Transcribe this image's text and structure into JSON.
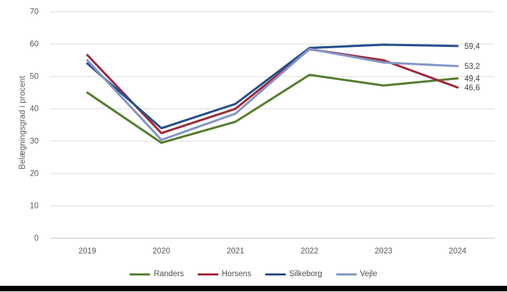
{
  "chart_data": {
    "type": "line",
    "title": "",
    "xlabel": "",
    "ylabel": "Belægningsgrad i procent",
    "x": [
      "2019",
      "2020",
      "2021",
      "2022",
      "2023",
      "2024"
    ],
    "ylim": [
      0,
      70
    ],
    "yticks": [
      0,
      10,
      20,
      30,
      40,
      50,
      60,
      70
    ],
    "grid": true,
    "legend_position": "bottom",
    "decimal_separator": ",",
    "series": [
      {
        "name": "Randers",
        "color": "#567D2E",
        "values": [
          45.0,
          29.5,
          36.0,
          50.5,
          47.2,
          49.4
        ],
        "end_label": "49,4"
      },
      {
        "name": "Horsens",
        "color": "#9E2A3C",
        "values": [
          56.6,
          32.5,
          40.0,
          58.4,
          55.0,
          46.6
        ],
        "end_label": "46,6"
      },
      {
        "name": "Silkeborg",
        "color": "#26508C",
        "values": [
          54.0,
          34.0,
          41.5,
          58.8,
          59.8,
          59.4
        ],
        "end_label": "59,4"
      },
      {
        "name": "Vejle",
        "color": "#8496C8",
        "values": [
          55.0,
          30.4,
          38.5,
          58.5,
          54.3,
          53.2
        ],
        "end_label": "53,2"
      }
    ],
    "colors": {
      "gridline": "#D9D9D9",
      "zero_axis_line": "#BFBFBF",
      "axis_text": "#595959",
      "end_label_text": "#404040",
      "bottom_border": "#000000"
    }
  }
}
